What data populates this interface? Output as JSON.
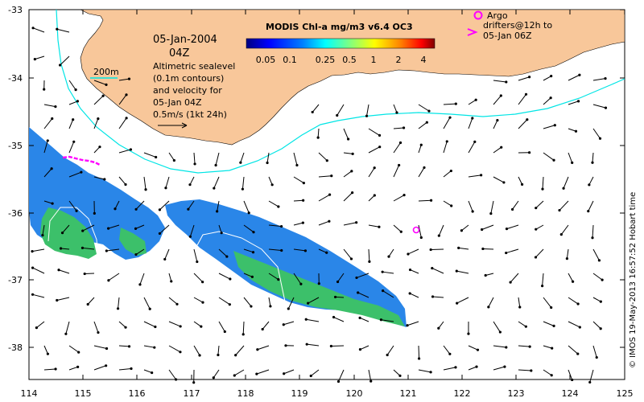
{
  "map": {
    "date_text": "05-Jan-2004",
    "time_text": "04Z",
    "isobath_label": "200m",
    "sealevel_text": [
      "Altimetric sealevel",
      "(0.1m contours)",
      "and velocity for",
      "05-Jan 04Z",
      "0.5m/s (1kt 24h)"
    ],
    "colorbar_title": "MODIS Chl-a mg/m3 v6.4 OC3",
    "colorbar_ticks": [
      "0.05",
      "0.1",
      "0.25",
      "0.5",
      "1",
      "2",
      "4"
    ],
    "argo_text": [
      "Argo",
      "drifters@12h to",
      "05-Jan 06Z"
    ],
    "credit": "© IMOS 19-May-2013 16:57:52 Hobart time",
    "lon_ticks": [
      "114",
      "115",
      "116",
      "117",
      "118",
      "119",
      "120",
      "121",
      "122",
      "123",
      "124",
      "125"
    ],
    "lat_ticks": [
      "-33",
      "-34",
      "-35",
      "-36",
      "-37",
      "-38"
    ],
    "colors": {
      "land": "#f8c79a",
      "isobath": "#00e5e5",
      "argo": "#ff00ff",
      "arrow": "#000000",
      "ssh_contour": "#ffffff"
    },
    "colorbar_colors": [
      "#000080",
      "#0000ff",
      "#0080ff",
      "#00ffff",
      "#80ff80",
      "#ffff00",
      "#ff8000",
      "#ff0000",
      "#800000"
    ]
  }
}
